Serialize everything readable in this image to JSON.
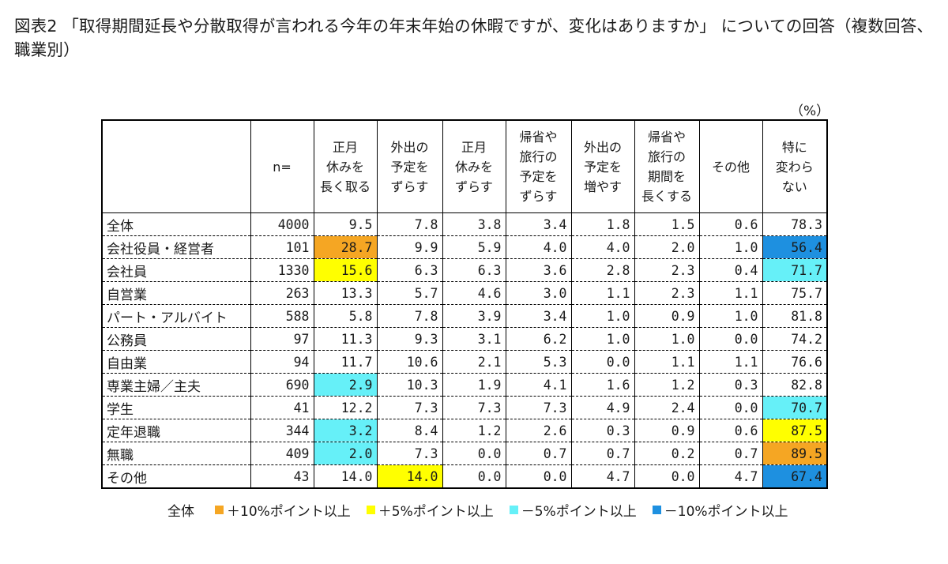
{
  "title": "図表2 「取得期間延長や分散取得が言われる今年の年末年始の休暇ですが、変化はありますか」 についての回答（複数回答、職業別）",
  "unit": "（%）",
  "chart_data": {
    "type": "table",
    "header_n": "n=",
    "columns": [
      [
        "正月",
        "休みを",
        "長く取る"
      ],
      [
        "外出の",
        "予定を",
        "ずらす"
      ],
      [
        "正月",
        "休みを",
        "ずらす"
      ],
      [
        "帰省や",
        "旅行の",
        "予定を",
        "ずらす"
      ],
      [
        "外出の",
        "予定を",
        "増やす"
      ],
      [
        "帰省や",
        "旅行の",
        "期間を",
        "長くする"
      ],
      [
        "その他"
      ],
      [
        "特に",
        "変わら",
        "ない"
      ]
    ],
    "rows": [
      {
        "label": "全体",
        "n": "4000",
        "values": [
          "9.5",
          "7.8",
          "3.8",
          "3.4",
          "1.8",
          "1.5",
          "0.6",
          "78.3"
        ],
        "highlights": [
          null,
          null,
          null,
          null,
          null,
          null,
          null,
          null
        ]
      },
      {
        "label": "会社役員・経営者",
        "n": "101",
        "values": [
          "28.7",
          "9.9",
          "5.9",
          "4.0",
          "4.0",
          "2.0",
          "1.0",
          "56.4"
        ],
        "highlights": [
          "plus10",
          null,
          null,
          null,
          null,
          null,
          null,
          "minus10"
        ]
      },
      {
        "label": "会社員",
        "n": "1330",
        "values": [
          "15.6",
          "6.3",
          "6.3",
          "3.6",
          "2.8",
          "2.3",
          "0.4",
          "71.7"
        ],
        "highlights": [
          "plus5",
          null,
          null,
          null,
          null,
          null,
          null,
          "minus5"
        ]
      },
      {
        "label": "自営業",
        "n": "263",
        "values": [
          "13.3",
          "5.7",
          "4.6",
          "3.0",
          "1.1",
          "2.3",
          "1.1",
          "75.7"
        ],
        "highlights": [
          null,
          null,
          null,
          null,
          null,
          null,
          null,
          null
        ]
      },
      {
        "label": "パート・アルバイト",
        "n": "588",
        "values": [
          "5.8",
          "7.8",
          "3.9",
          "3.4",
          "1.0",
          "0.9",
          "1.0",
          "81.8"
        ],
        "highlights": [
          null,
          null,
          null,
          null,
          null,
          null,
          null,
          null
        ]
      },
      {
        "label": "公務員",
        "n": "97",
        "values": [
          "11.3",
          "9.3",
          "3.1",
          "6.2",
          "1.0",
          "1.0",
          "0.0",
          "74.2"
        ],
        "highlights": [
          null,
          null,
          null,
          null,
          null,
          null,
          null,
          null
        ]
      },
      {
        "label": "自由業",
        "n": "94",
        "values": [
          "11.7",
          "10.6",
          "2.1",
          "5.3",
          "0.0",
          "1.1",
          "1.1",
          "76.6"
        ],
        "highlights": [
          null,
          null,
          null,
          null,
          null,
          null,
          null,
          null
        ]
      },
      {
        "label": "専業主婦／主夫",
        "n": "690",
        "values": [
          "2.9",
          "10.3",
          "1.9",
          "4.1",
          "1.6",
          "1.2",
          "0.3",
          "82.8"
        ],
        "highlights": [
          "minus5",
          null,
          null,
          null,
          null,
          null,
          null,
          null
        ]
      },
      {
        "label": "学生",
        "n": "41",
        "values": [
          "12.2",
          "7.3",
          "7.3",
          "7.3",
          "4.9",
          "2.4",
          "0.0",
          "70.7"
        ],
        "highlights": [
          null,
          null,
          null,
          null,
          null,
          null,
          null,
          "minus5"
        ]
      },
      {
        "label": "定年退職",
        "n": "344",
        "values": [
          "3.2",
          "8.4",
          "1.2",
          "2.6",
          "0.3",
          "0.9",
          "0.6",
          "87.5"
        ],
        "highlights": [
          "minus5",
          null,
          null,
          null,
          null,
          null,
          null,
          "plus5"
        ]
      },
      {
        "label": "無職",
        "n": "409",
        "values": [
          "2.0",
          "7.3",
          "0.0",
          "0.7",
          "0.7",
          "0.2",
          "0.7",
          "89.5"
        ],
        "highlights": [
          "minus5",
          null,
          null,
          null,
          null,
          null,
          null,
          "plus10"
        ]
      },
      {
        "label": "その他",
        "n": "43",
        "values": [
          "14.0",
          "14.0",
          "0.0",
          "0.0",
          "4.7",
          "0.0",
          "4.7",
          "67.4"
        ],
        "highlights": [
          null,
          "plus5",
          null,
          null,
          null,
          null,
          null,
          "minus10"
        ]
      }
    ]
  },
  "legend": {
    "label": "全体",
    "items": [
      {
        "key": "plus10",
        "text": "＋10%ポイント以上",
        "color": "#F5A623"
      },
      {
        "key": "plus5",
        "text": "＋5%ポイント以上",
        "color": "#FFFF00"
      },
      {
        "key": "minus5",
        "text": "－5%ポイント以上",
        "color": "#66F0F8"
      },
      {
        "key": "minus10",
        "text": "－10%ポイント以上",
        "color": "#1E90E0"
      }
    ]
  }
}
